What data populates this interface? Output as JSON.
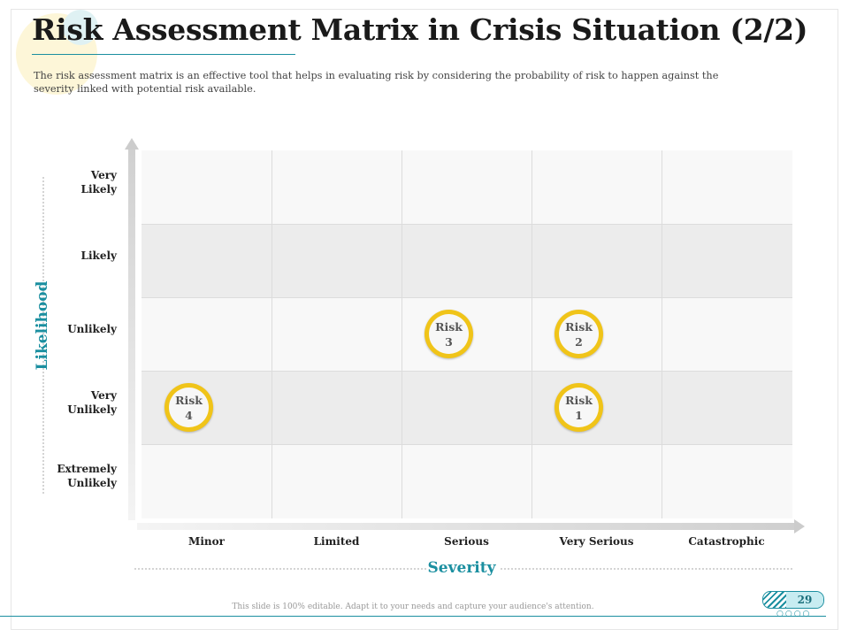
{
  "title": "Risk Assessment Matrix in Crisis Situation (2/2)",
  "subtitle": "The risk assessment matrix is an effective tool that helps in evaluating risk by considering the probability of risk to happen against the severity linked with potential risk available.",
  "axes": {
    "y_title": "Likelihood",
    "x_title": "Severity"
  },
  "likelihood_levels": [
    "Very\nLikely",
    "Likely",
    "Unlikely",
    "Very\nUnlikely",
    "Extremely\nUnlikely"
  ],
  "severity_levels": [
    "Minor",
    "Limited",
    "Serious",
    "Very Serious",
    "Catastrophic"
  ],
  "risks": [
    {
      "label": "Risk",
      "number": "1",
      "likelihood": "Very Unlikely",
      "severity": "Very Serious"
    },
    {
      "label": "Risk",
      "number": "2",
      "likelihood": "Unlikely",
      "severity": "Very Serious"
    },
    {
      "label": "Risk",
      "number": "3",
      "likelihood": "Unlikely",
      "severity": "Serious"
    },
    {
      "label": "Risk",
      "number": "4",
      "likelihood": "Very Unlikely",
      "severity": "Minor"
    }
  ],
  "footer": {
    "note": "This slide is 100% editable. Adapt it to your needs and capture your audience's attention.",
    "page_number": "29"
  },
  "colors": {
    "accent": "#1b8fa0",
    "marker_ring": "#f0c419"
  }
}
